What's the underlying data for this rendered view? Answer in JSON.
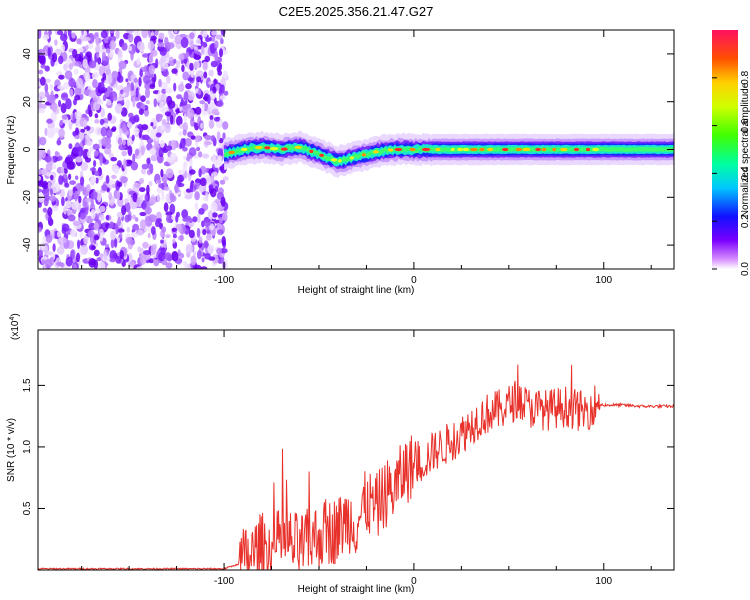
{
  "chart_data": [
    {
      "type": "heatmap",
      "title": "C2E5.2025.356.21.47.G27",
      "xlabel": "Height of straight line (km)",
      "ylabel": "Frequency (Hz)",
      "xlim": [
        -198,
        137
      ],
      "ylim": [
        -50,
        50
      ],
      "xticks": [
        -100,
        0,
        100
      ],
      "xtick_labels": [
        "-100",
        "0",
        "100"
      ],
      "yticks": [
        -40,
        -20,
        0,
        20,
        40
      ],
      "ytick_labels": [
        "-40",
        "-20",
        "0",
        "20",
        "40"
      ],
      "noise_region_x": [
        -198,
        -100
      ],
      "signal_region_x": [
        -100,
        137
      ],
      "ridge": {
        "description": "frequency ridge near 0 Hz",
        "x": [
          -100,
          -90,
          -80,
          -70,
          -60,
          -50,
          -40,
          -30,
          -20,
          -10,
          0,
          10,
          20,
          40,
          60,
          80,
          100,
          137
        ],
        "y": [
          -2,
          0,
          1,
          0,
          1,
          -2,
          -5,
          -3,
          -1,
          0,
          0,
          0,
          0,
          0,
          0,
          0,
          0,
          0
        ]
      },
      "colorbar": {
        "label": "Normalized spectral amplitude",
        "range": [
          0,
          1
        ],
        "ticks": [
          0.0,
          0.2,
          0.4,
          0.6,
          0.8
        ],
        "tick_labels": [
          "0.0",
          "0.2",
          "0.4",
          "0.6",
          "0.8"
        ]
      }
    },
    {
      "type": "line",
      "xlabel": "Height of straight line (km)",
      "ylabel": "SNR (10 * v/v)",
      "y_multiplier_label": "(x10",
      "y_multiplier_exponent": "4",
      "xlim": [
        -198,
        137
      ],
      "ylim": [
        0,
        1.95
      ],
      "xticks": [
        -100,
        0,
        100
      ],
      "xtick_labels": [
        "-100",
        "0",
        "100"
      ],
      "yticks": [
        0.5,
        1.0,
        1.5
      ],
      "ytick_labels": [
        "0.5",
        "1.0",
        "1.5"
      ],
      "line_color": "#e8312a",
      "series": [
        {
          "name": "SNR",
          "x": [
            -198,
            -150,
            -100,
            -92,
            -85,
            -80,
            -75,
            -70,
            -60,
            -50,
            -40,
            -35,
            -30,
            -25,
            -20,
            -15,
            -10,
            -5,
            0,
            5,
            10,
            15,
            20,
            25,
            30,
            35,
            40,
            45,
            50,
            55,
            60,
            70,
            80,
            90,
            95,
            100,
            110,
            120,
            137
          ],
          "y": [
            0.01,
            0.01,
            0.01,
            0.05,
            0.12,
            0.2,
            0.14,
            0.25,
            0.18,
            0.28,
            0.33,
            0.42,
            0.38,
            0.55,
            0.5,
            0.62,
            0.66,
            0.8,
            0.85,
            0.88,
            0.96,
            1.0,
            1.05,
            1.1,
            1.18,
            1.24,
            1.28,
            1.3,
            1.34,
            1.4,
            1.32,
            1.3,
            1.33,
            1.28,
            1.35,
            1.34,
            1.34,
            1.33,
            1.33
          ]
        }
      ]
    }
  ]
}
